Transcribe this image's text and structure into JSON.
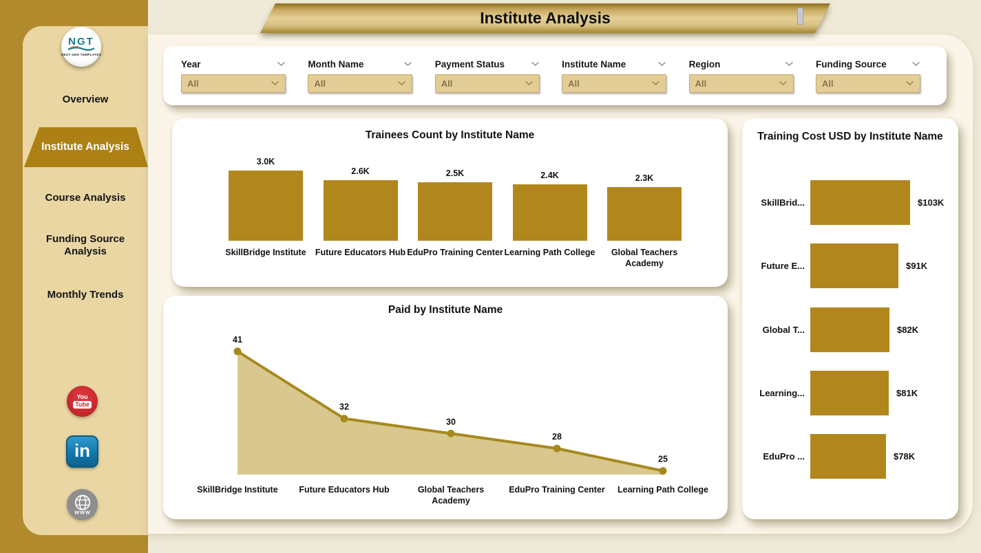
{
  "banner": {
    "title": "Institute Analysis"
  },
  "logo": {
    "text": "NGT",
    "subtext": "NEXT GEN TEMPLATES"
  },
  "sidebar": {
    "items": [
      {
        "label": "Overview",
        "active": false
      },
      {
        "label": "Institute Analysis",
        "active": true
      },
      {
        "label": "Course Analysis",
        "active": false
      },
      {
        "label": "Funding Source Analysis",
        "active": false
      },
      {
        "label": "Monthly Trends",
        "active": false
      }
    ],
    "social_icons": {
      "youtube": {
        "line1": "You",
        "line2": "Tube"
      },
      "linkedin": {
        "text": "in"
      },
      "website": {
        "text": "WWW"
      }
    }
  },
  "filters": [
    {
      "label": "Year",
      "value": "All"
    },
    {
      "label": "Month Name",
      "value": "All"
    },
    {
      "label": "Payment Status",
      "value": "All"
    },
    {
      "label": "Institute Name",
      "value": "All"
    },
    {
      "label": "Region",
      "value": "All"
    },
    {
      "label": "Funding Source",
      "value": "All"
    }
  ],
  "chart_data": [
    {
      "type": "bar",
      "title": "Trainees Count by Institute Name",
      "categories": [
        "SkillBridge Institute",
        "Future Educators Hub",
        "EduPro Training Center",
        "Learning Path College",
        "Global Teachers Academy"
      ],
      "values": [
        3000,
        2600,
        2500,
        2400,
        2300
      ],
      "value_labels": [
        "3.0K",
        "2.6K",
        "2.5K",
        "2.4K",
        "2.3K"
      ],
      "ylim": [
        0,
        3000
      ],
      "grid": false,
      "bar_color": "#B1861C"
    },
    {
      "type": "area",
      "title": "Paid by Institute Name",
      "categories": [
        "SkillBridge Institute",
        "Future Educators Hub",
        "Global Teachers Academy",
        "EduPro Training Center",
        "Learning Path College"
      ],
      "values": [
        41,
        32,
        30,
        28,
        25
      ],
      "value_labels": [
        "41",
        "32",
        "30",
        "28",
        "25"
      ],
      "ylim": [
        24.5,
        42
      ],
      "grid": false,
      "line_color": "#A6891F",
      "fill_color": "#D8C88E"
    },
    {
      "type": "bar-horizontal",
      "title": "Training Cost USD by Institute Name",
      "categories": [
        "SkillBrid...",
        "Future E...",
        "Global T...",
        "Learning...",
        "EduPro ..."
      ],
      "values": [
        103,
        91,
        82,
        81,
        78
      ],
      "value_labels": [
        "$103K",
        "$91K",
        "$82K",
        "$81K",
        "$78K"
      ],
      "xlim": [
        0,
        103
      ],
      "grid": false,
      "bar_color": "#B1861C"
    }
  ],
  "colors": {
    "sidebar_outer": "#B08A2D",
    "sidebar_inner": "#E9D6A3",
    "active_tab": "#AC8012",
    "page_bg": "#EFE9D8",
    "panel_bg": "#FAF5E8",
    "card_bg": "#FFFFFF",
    "accent_gold": "#B1861C",
    "filter_box_bg": "#E3CD97",
    "filter_value_text": "#8A7448",
    "youtube_red": "#CC2127",
    "linkedin_blue": "#1B84B5",
    "website_gray": "#8E8E8E",
    "logo_teal": "#177A8C"
  }
}
